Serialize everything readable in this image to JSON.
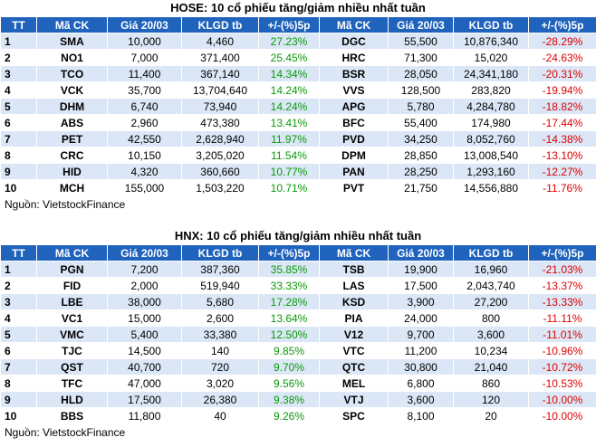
{
  "tables": [
    {
      "title": "HOSE: 10 cổ phiếu tăng/giảm nhiều nhất tuần",
      "header": [
        "TT",
        "Mã CK",
        "Giá 20/03",
        "KLGD tb",
        "+/-(%)5p",
        "Mã CK",
        "Giá 20/03",
        "KLGD tb",
        "+/-(%)5p"
      ],
      "rows": [
        [
          "1",
          "SMA",
          "10,000",
          "4,460",
          "27.23%",
          "DGC",
          "55,500",
          "10,876,340",
          "-28.29%"
        ],
        [
          "2",
          "NO1",
          "7,000",
          "371,400",
          "25.45%",
          "HRC",
          "71,300",
          "15,020",
          "-24.63%"
        ],
        [
          "3",
          "TCO",
          "11,400",
          "367,140",
          "14.34%",
          "BSR",
          "28,050",
          "24,341,180",
          "-20.31%"
        ],
        [
          "4",
          "VCK",
          "35,700",
          "13,704,640",
          "14.24%",
          "VVS",
          "128,500",
          "283,820",
          "-19.94%"
        ],
        [
          "5",
          "DHM",
          "6,740",
          "73,940",
          "14.24%",
          "APG",
          "5,780",
          "4,284,780",
          "-18.82%"
        ],
        [
          "6",
          "ABS",
          "2,960",
          "473,380",
          "13.41%",
          "BFC",
          "55,400",
          "174,980",
          "-17.44%"
        ],
        [
          "7",
          "PET",
          "42,550",
          "2,628,940",
          "11.97%",
          "PVD",
          "34,250",
          "8,052,760",
          "-14.38%"
        ],
        [
          "8",
          "CRC",
          "10,150",
          "3,205,020",
          "11.54%",
          "DPM",
          "28,850",
          "13,008,540",
          "-13.10%"
        ],
        [
          "9",
          "HID",
          "4,320",
          "360,660",
          "10.77%",
          "PAN",
          "28,250",
          "1,293,160",
          "-12.27%"
        ],
        [
          "10",
          "MCH",
          "155,000",
          "1,503,220",
          "10.71%",
          "PVT",
          "21,750",
          "14,556,880",
          "-11.76%"
        ]
      ],
      "source": "Nguồn: VietstockFinance"
    },
    {
      "title": "HNX: 10 cổ phiếu tăng/giảm nhiều nhất tuần",
      "header": [
        "TT",
        "Mã CK",
        "Giá 20/03",
        "KLGD tb",
        "+/-(%)5p",
        "Mã CK",
        "Giá 20/03",
        "KLGD tb",
        "+/-(%)5p"
      ],
      "rows": [
        [
          "1",
          "PGN",
          "7,200",
          "387,360",
          "35.85%",
          "TSB",
          "19,900",
          "16,960",
          "-21.03%"
        ],
        [
          "2",
          "FID",
          "2,000",
          "519,940",
          "33.33%",
          "LAS",
          "17,500",
          "2,043,740",
          "-13.37%"
        ],
        [
          "3",
          "LBE",
          "38,000",
          "5,680",
          "17.28%",
          "KSD",
          "3,900",
          "27,200",
          "-13.33%"
        ],
        [
          "4",
          "VC1",
          "15,000",
          "2,600",
          "13.64%",
          "PIA",
          "24,000",
          "800",
          "-11.11%"
        ],
        [
          "5",
          "VMC",
          "5,400",
          "33,380",
          "12.50%",
          "V12",
          "9,700",
          "3,600",
          "-11.01%"
        ],
        [
          "6",
          "TJC",
          "14,500",
          "140",
          "9.85%",
          "VTC",
          "11,200",
          "10,234",
          "-10.96%"
        ],
        [
          "7",
          "QST",
          "40,700",
          "720",
          "9.70%",
          "QTC",
          "30,800",
          "21,040",
          "-10.72%"
        ],
        [
          "8",
          "TFC",
          "47,000",
          "3,020",
          "9.56%",
          "MEL",
          "6,800",
          "860",
          "-10.53%"
        ],
        [
          "9",
          "HLD",
          "17,500",
          "26,380",
          "9.38%",
          "VTJ",
          "3,600",
          "120",
          "-10.00%"
        ],
        [
          "10",
          "BBS",
          "11,800",
          "40",
          "9.26%",
          "SPC",
          "8,100",
          "20",
          "-10.00%"
        ]
      ],
      "source": "Nguồn: VietstockFinance"
    }
  ]
}
